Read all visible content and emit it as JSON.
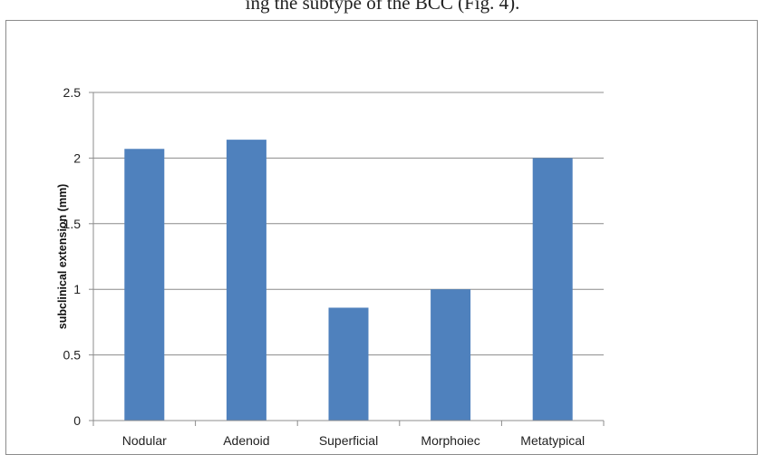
{
  "header_text": "ing the subtype of the BCC (Fig. 4).",
  "chart_data": {
    "type": "bar",
    "categories": [
      "Nodular",
      "Adenoid",
      "Superficial",
      "Morphoiec",
      "Metatypical"
    ],
    "values": [
      2.07,
      2.14,
      0.86,
      1.0,
      2.0
    ],
    "title": "",
    "xlabel": "",
    "ylabel": "subclinical extension (mm)",
    "ylim": [
      0,
      2.5
    ],
    "yticks": [
      "0",
      "0.5",
      "1",
      "1.5",
      "2",
      "2.5"
    ],
    "grid": true,
    "bar_color": "#4f81bd"
  }
}
